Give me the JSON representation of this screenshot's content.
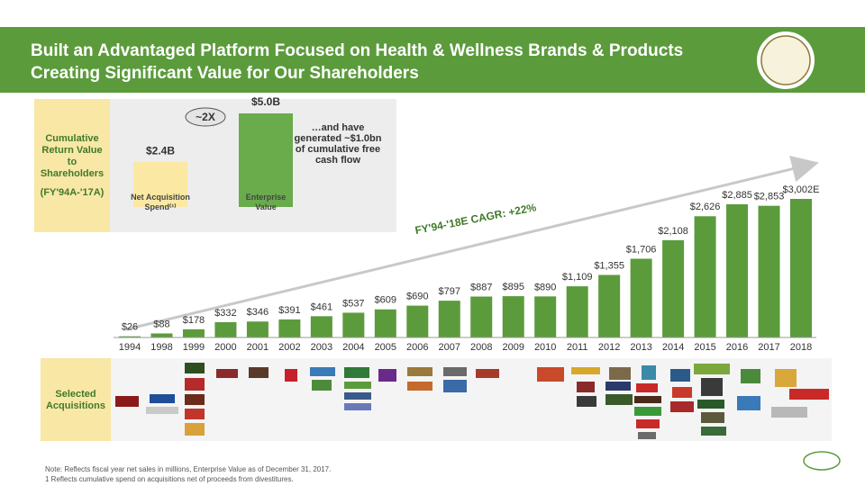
{
  "header": {
    "title_lines": [
      "Built an Advantaged Platform Focused on Health & Wellness Brands & Products",
      "Creating Significant Value for Our Shareholders"
    ]
  },
  "return_box": {
    "label_lines": [
      "Cumulative",
      "Return Value",
      "to",
      "Shareholders"
    ],
    "period": "(FY'94A-'17A)"
  },
  "chart_data": [
    {
      "type": "bar",
      "title": "Net Sales",
      "categories": [
        "1994",
        "1998",
        "1999",
        "2000",
        "2001",
        "2002",
        "2003",
        "2004",
        "2005",
        "2006",
        "2007",
        "2008",
        "2009",
        "2010",
        "2011",
        "2012",
        "2013",
        "2014",
        "2015",
        "2016",
        "2017",
        "2018"
      ],
      "values": [
        26,
        88,
        178,
        332,
        346,
        391,
        461,
        537,
        609,
        690,
        797,
        887,
        895,
        890,
        1109,
        1355,
        1706,
        2108,
        2626,
        2885,
        2853,
        3002
      ],
      "value_labels": [
        "$26",
        "$88",
        "$178",
        "$332",
        "$346",
        "$391",
        "$461",
        "$537",
        "$609",
        "$690",
        "$797",
        "$887",
        "$895",
        "$890",
        "$1,109",
        "$1,355",
        "$1,706",
        "$2,108",
        "$2,626",
        "$2,885",
        "$2,853",
        "$3,002E"
      ],
      "color": "#5b9b3c",
      "annotation": "FY'94-'18E CAGR: +22%"
    },
    {
      "type": "bar",
      "categories": [
        "Net Acquisition Spend⁽¹⁾",
        "Enterprise Value"
      ],
      "values": [
        2.4,
        5.0
      ],
      "value_labels": [
        "$2.4B",
        "$5.0B"
      ],
      "colors": [
        "#fbe9a3",
        "#6aab4c"
      ],
      "annotation": "~2X",
      "note": "…and have generated ~$1.0bn of cumulative free cash flow"
    }
  ],
  "acquisitions": {
    "label": "Selected Acquisitions"
  },
  "footnotes": [
    "Note: Reflects fiscal year net sales in millions, Enterprise Value as of December 31, 2017.",
    "1 Reflects cumulative spend on acquisitions net of proceeds from divestitures."
  ]
}
